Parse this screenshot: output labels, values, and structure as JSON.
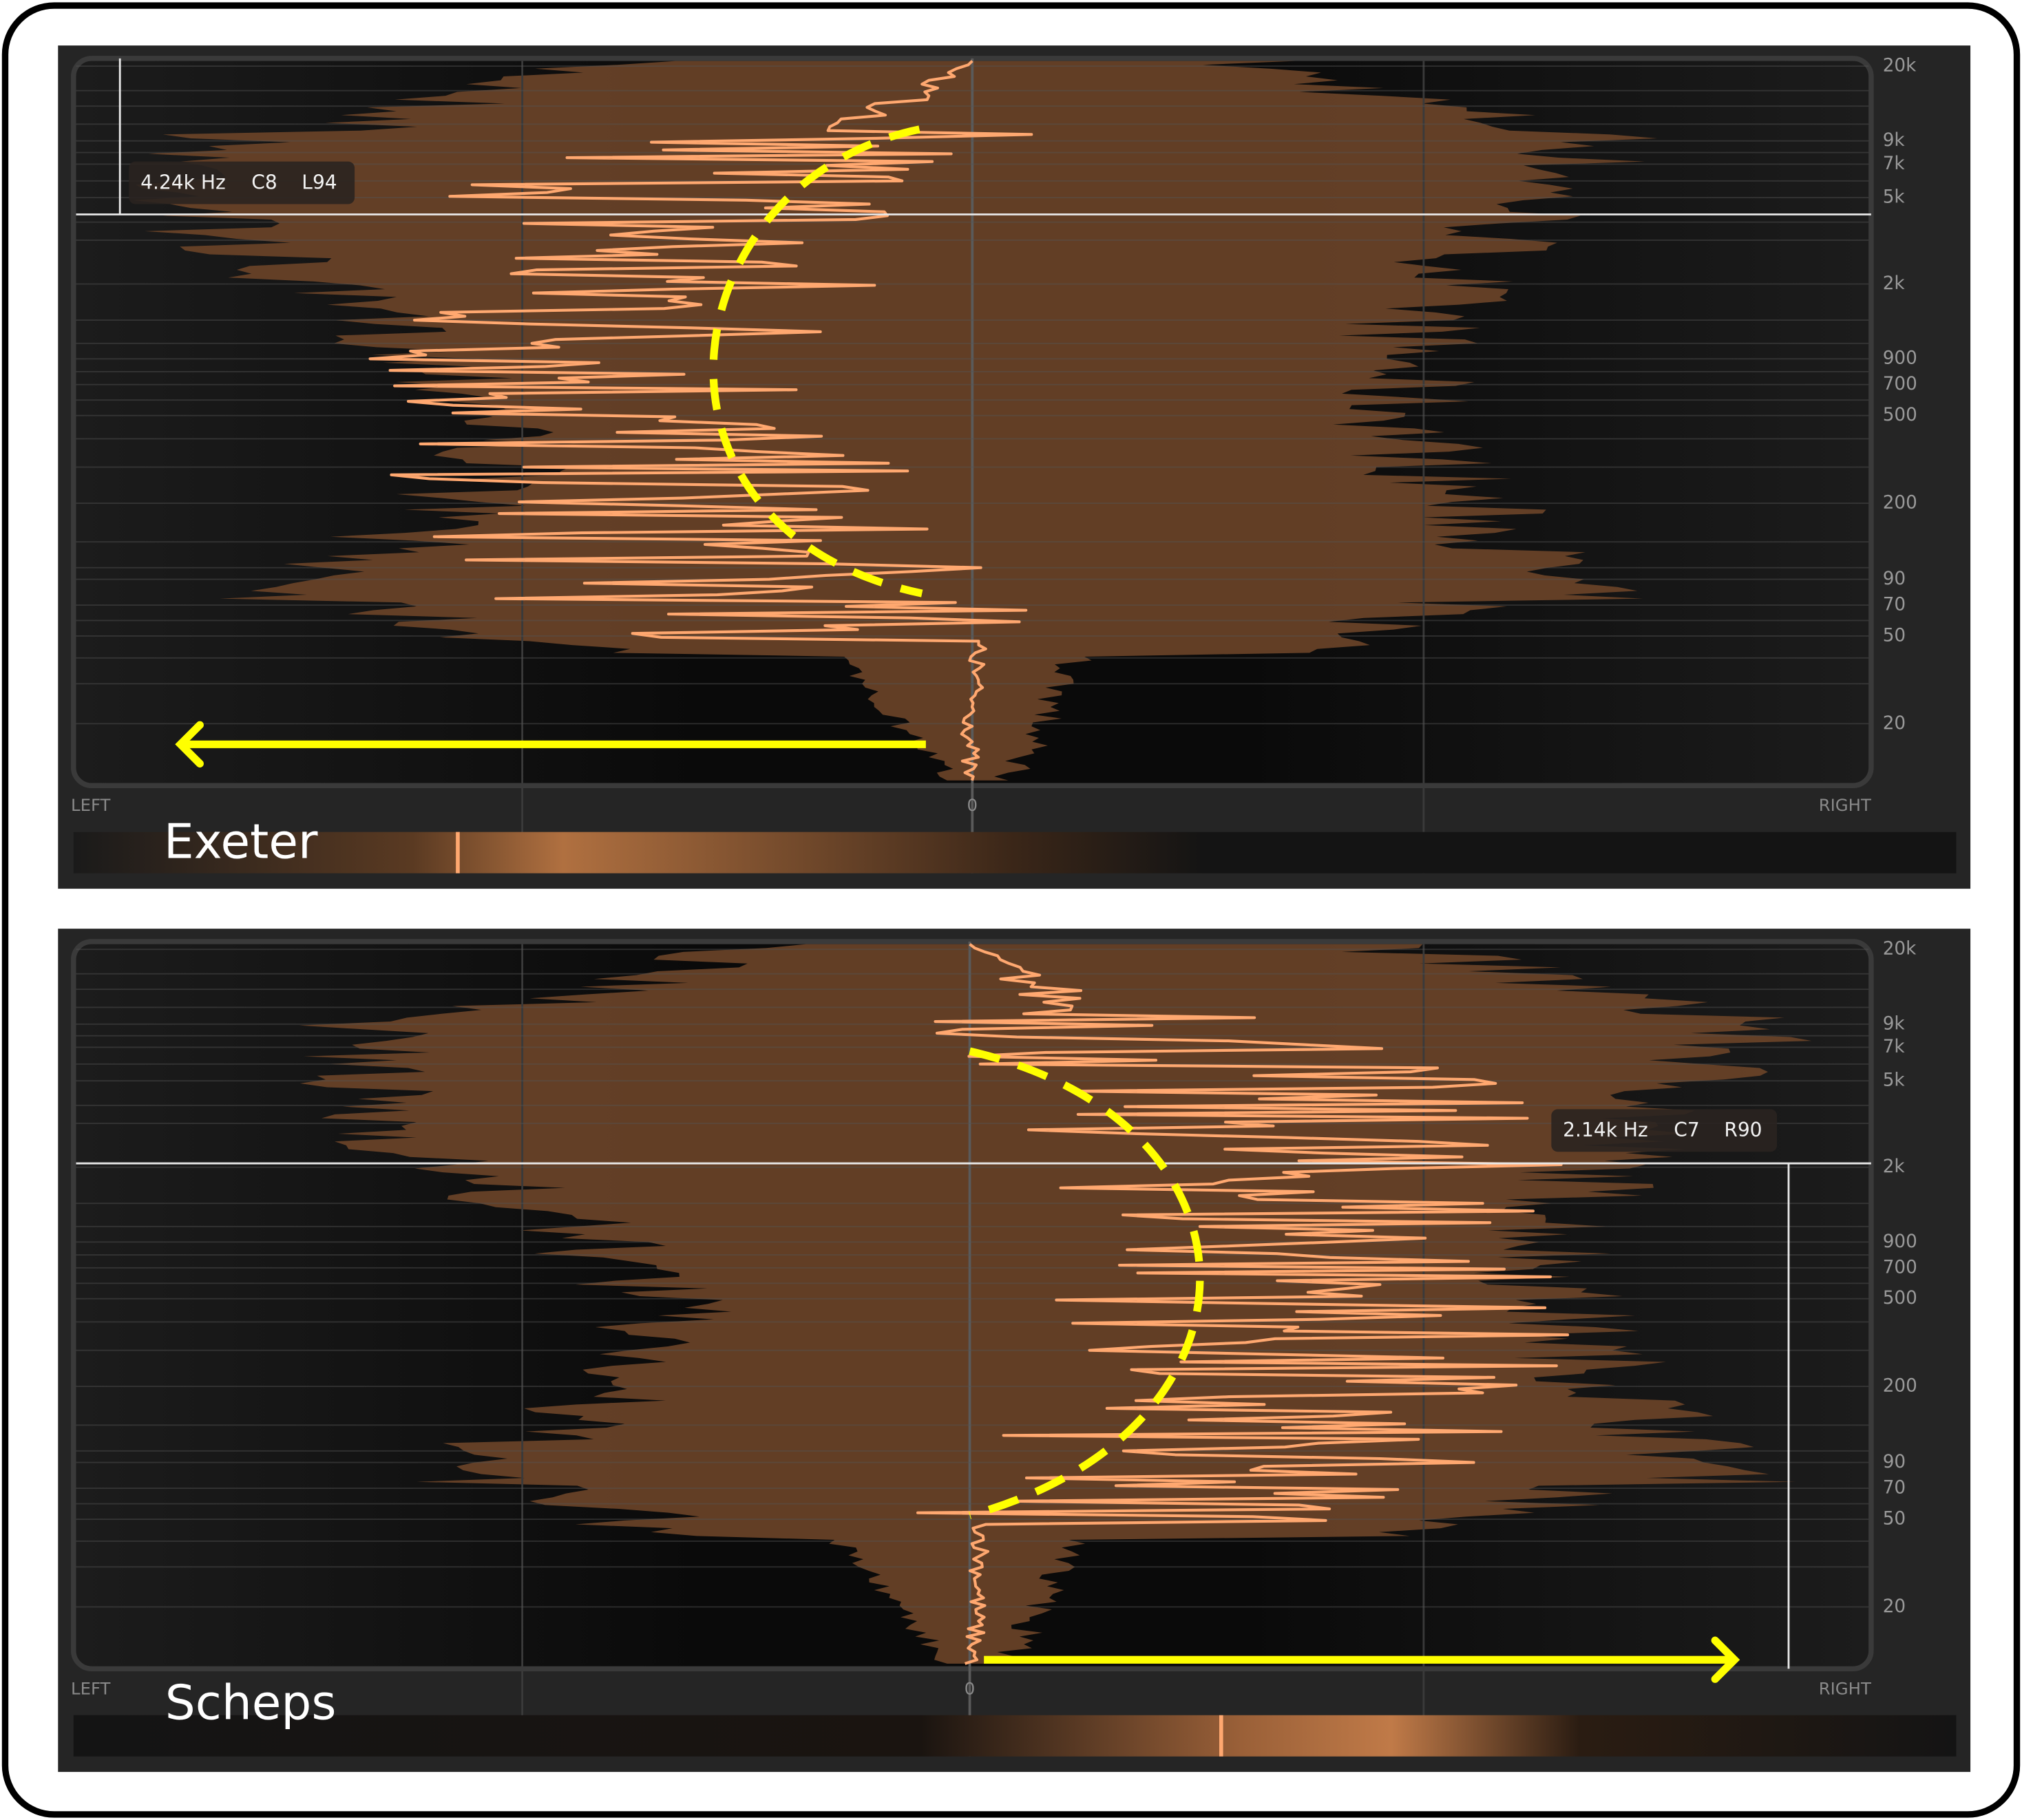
{
  "panels": [
    {
      "label": "Exeter",
      "tooltip": {
        "freq": "4.24k Hz",
        "note": "C8",
        "pan": "L94"
      },
      "axis": {
        "left": "LEFT",
        "center": "0",
        "right": "RIGHT"
      },
      "freq_labels": [
        "20k",
        "9k",
        "7k",
        "5k",
        "2k",
        "900",
        "700",
        "500",
        "200",
        "90",
        "70",
        "50",
        "20"
      ]
    },
    {
      "label": "Scheps",
      "tooltip": {
        "freq": "2.14k Hz",
        "note": "C7",
        "pan": "R90"
      },
      "axis": {
        "left": "LEFT",
        "center": "0",
        "right": "RIGHT"
      },
      "freq_labels": [
        "20k",
        "9k",
        "7k",
        "5k",
        "2k",
        "900",
        "700",
        "500",
        "200",
        "90",
        "70",
        "50",
        "20"
      ]
    }
  ]
}
